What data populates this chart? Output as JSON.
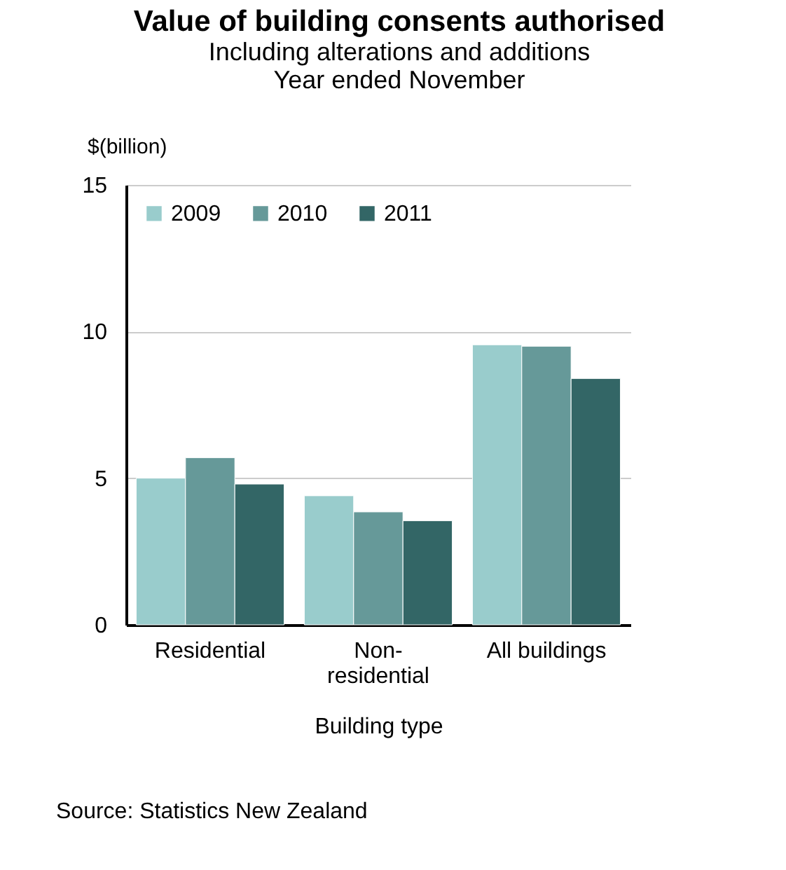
{
  "chart_data": {
    "type": "bar",
    "title": "Value of building consents authorised",
    "subtitle": "Including alterations and additions\nYear ended November",
    "categories": [
      "Residential",
      "Non-residential",
      "All buildings"
    ],
    "series": [
      {
        "name": "2009",
        "color": "#99cccc",
        "values": [
          5.0,
          4.4,
          9.55
        ]
      },
      {
        "name": "2010",
        "color": "#669999",
        "values": [
          5.7,
          3.85,
          9.5
        ]
      },
      {
        "name": "2011",
        "color": "#336666",
        "values": [
          4.8,
          3.55,
          8.4
        ]
      }
    ],
    "ylabel": "$(billion)",
    "xlabel": "Building type",
    "ylim": [
      0,
      15
    ],
    "yticks": [
      0,
      5,
      10,
      15
    ],
    "grid": "y",
    "legend": "top left",
    "annotations": [
      "Source: Statistics New Zealand"
    ]
  }
}
